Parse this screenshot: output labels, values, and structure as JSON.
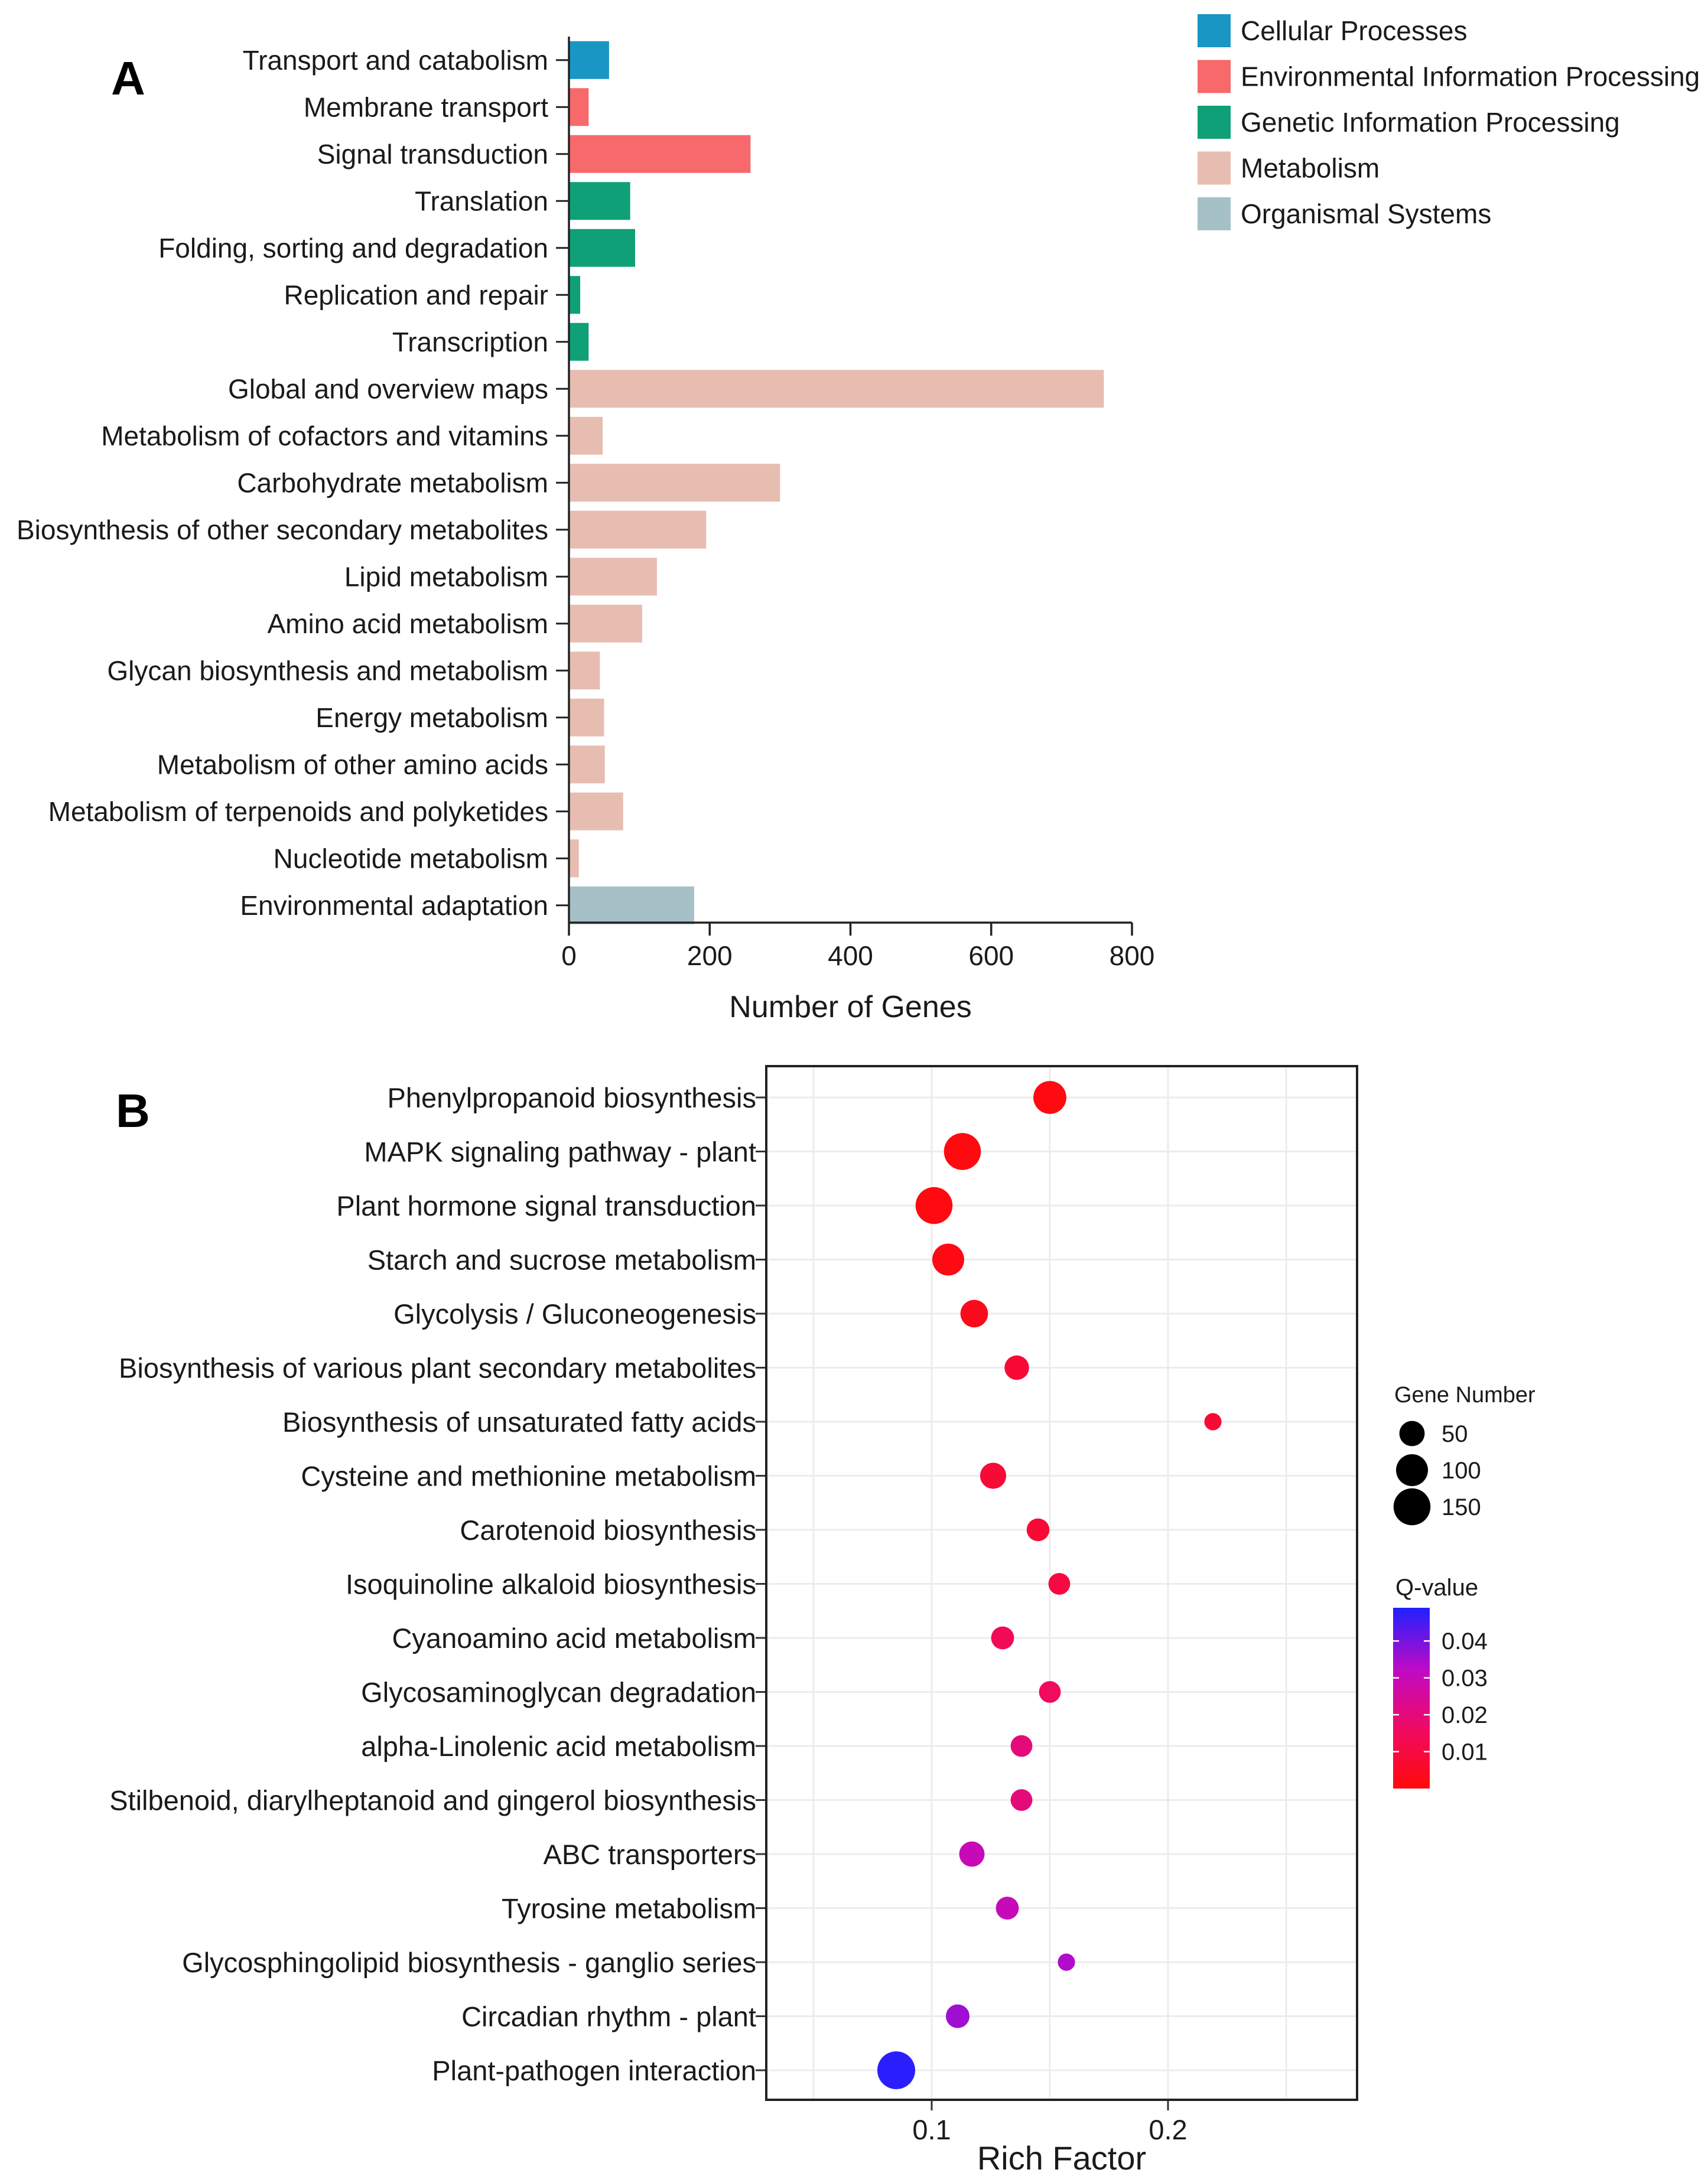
{
  "panels": {
    "a": {
      "letter": "A"
    },
    "b": {
      "letter": "B"
    }
  },
  "chart_data": [
    {
      "type": "bar",
      "orientation": "horizontal",
      "categories": [
        "Transport and catabolism",
        "Membrane transport",
        "Signal transduction",
        "Translation",
        "Folding, sorting and degradation",
        "Replication and repair",
        "Transcription",
        "Global and overview maps",
        "Metabolism of cofactors and vitamins",
        "Carbohydrate metabolism",
        "Biosynthesis of other secondary metabolites",
        "Lipid metabolism",
        "Amino acid metabolism",
        "Glycan biosynthesis and metabolism",
        "Energy metabolism",
        "Metabolism of other amino acids",
        "Metabolism of terpenoids and polyketides",
        "Nucleotide metabolism",
        "Environmental adaptation"
      ],
      "values": [
        57,
        28,
        258,
        87,
        94,
        16,
        28,
        760,
        48,
        300,
        195,
        125,
        104,
        44,
        50,
        51,
        77,
        14,
        178
      ],
      "groups": [
        0,
        1,
        1,
        2,
        2,
        2,
        2,
        3,
        3,
        3,
        3,
        3,
        3,
        3,
        3,
        3,
        3,
        3,
        4
      ],
      "legend": [
        {
          "name": "Cellular Processes",
          "color": "#1a96c4"
        },
        {
          "name": "Environmental Information Processing",
          "color": "#f7696b"
        },
        {
          "name": "Genetic Information Processing",
          "color": "#0fa077"
        },
        {
          "name": "Metabolism",
          "color": "#e7bdb2"
        },
        {
          "name": "Organismal Systems",
          "color": "#a6c0c8"
        }
      ],
      "xlabel": "Number of Genes",
      "ylabel": "",
      "xlim": [
        0,
        800
      ],
      "xticks": [
        0,
        200,
        400,
        600,
        800
      ],
      "grid": false,
      "legend_position": "top-right"
    },
    {
      "type": "scatter",
      "categories": [
        "Phenylpropanoid biosynthesis",
        "MAPK signaling pathway - plant",
        "Plant hormone signal transduction",
        "Starch and sucrose metabolism",
        "Glycolysis / Gluconeogenesis",
        "Biosynthesis of various plant secondary metabolites",
        "Biosynthesis of unsaturated fatty acids",
        "Cysteine and methionine metabolism",
        "Carotenoid biosynthesis",
        "Isoquinoline alkaloid biosynthesis",
        "Cyanoamino acid metabolism",
        "Glycosaminoglycan degradation",
        "alpha-Linolenic acid metabolism",
        "Stilbenoid, diarylheptanoid and gingerol biosynthesis",
        "ABC transporters",
        "Tyrosine metabolism",
        "Glycosphingolipid biosynthesis - ganglio series",
        "Circadian rhythm - plant",
        "Plant-pathogen interaction"
      ],
      "rich_factor": [
        0.15,
        0.113,
        0.101,
        0.107,
        0.118,
        0.136,
        0.219,
        0.126,
        0.145,
        0.154,
        0.13,
        0.15,
        0.138,
        0.138,
        0.117,
        0.132,
        0.157,
        0.111,
        0.085
      ],
      "gene_number": [
        110,
        150,
        150,
        100,
        65,
        45,
        12,
        55,
        35,
        30,
        36,
        30,
        30,
        30,
        50,
        36,
        12,
        40,
        160
      ],
      "q_value": [
        0.001,
        0.001,
        0.001,
        0.002,
        0.003,
        0.008,
        0.008,
        0.008,
        0.008,
        0.01,
        0.014,
        0.015,
        0.02,
        0.02,
        0.03,
        0.03,
        0.034,
        0.036,
        0.048
      ],
      "xlabel": "Rich Factor",
      "xlim": [
        0.03,
        0.28
      ],
      "xticks": [
        0.1,
        0.2
      ],
      "xtick_labels": [
        "0.1",
        "0.2"
      ],
      "grid": true,
      "size_legend": {
        "title": "Gene  Number",
        "values": [
          50,
          100,
          150
        ]
      },
      "color_legend": {
        "title": "Q-value",
        "ticks": [
          0.04,
          0.03,
          0.02,
          0.01
        ],
        "tick_labels": [
          "0.04",
          "0.03",
          "0.02",
          "0.01"
        ],
        "range": [
          0.0,
          0.049
        ],
        "low_color": "#ff0a0a",
        "high_color": "#2020ff"
      }
    }
  ]
}
